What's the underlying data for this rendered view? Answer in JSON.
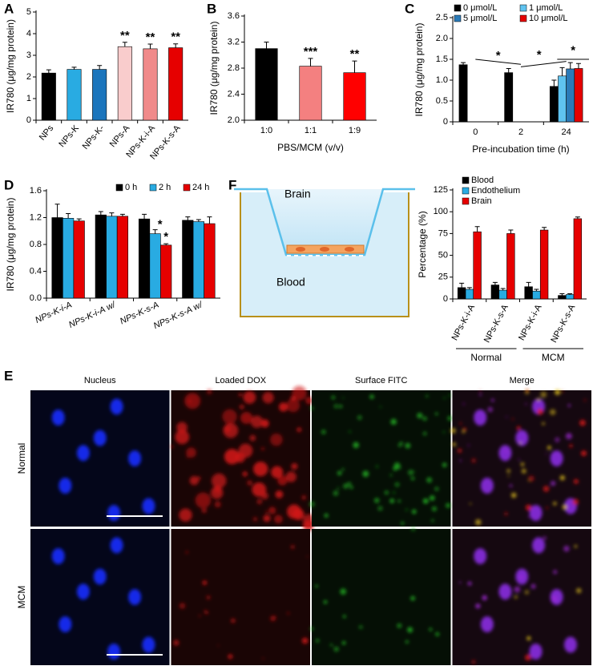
{
  "chart_data": [
    {
      "type": "bar",
      "label": "A",
      "ylabel": "IR780 (μg/mg protein)",
      "categories": [
        "NPs",
        "NPs-K",
        "NPs-K-",
        "NPs-A",
        "NPs-K-i-A",
        "NPs-K-s-A"
      ],
      "values": [
        2.18,
        2.35,
        2.35,
        3.4,
        3.3,
        3.35
      ],
      "errors": [
        0.15,
        0.1,
        0.18,
        0.2,
        0.22,
        0.18
      ],
      "colors": [
        "#000000",
        "#29abe2",
        "#1b75bc",
        "#f9cccc",
        "#f08a8a",
        "#e60000"
      ],
      "significance": [
        null,
        null,
        null,
        "**",
        "**",
        "**"
      ],
      "ylim": [
        0,
        5
      ],
      "yticks": [
        0,
        1,
        2,
        3,
        4,
        5
      ]
    },
    {
      "type": "bar",
      "label": "B",
      "ylabel": "IR780 (μg/mg protein)",
      "xlabel": "PBS/MCM (v/v)",
      "categories": [
        "1:0",
        "1:1",
        "1:9"
      ],
      "values": [
        3.1,
        2.83,
        2.73
      ],
      "errors": [
        0.1,
        0.12,
        0.18
      ],
      "colors": [
        "#000000",
        "#f48080",
        "#ff0000"
      ],
      "significance": [
        null,
        "***",
        "**"
      ],
      "ylim": [
        2.0,
        3.6
      ],
      "yticks": [
        {
          "value": 2.0,
          "label": "2.0"
        },
        2.4,
        2.8,
        3.2,
        3.6
      ]
    },
    {
      "type": "bar",
      "label": "C",
      "ylabel": "IR780 (μg/mg protein)",
      "xlabel": "Pre-incubation time (h)",
      "categories": [
        "0",
        "2",
        "24"
      ],
      "legend": "upper right",
      "series": [
        {
          "name": "0 μmol/L",
          "color": "#000000",
          "values": [
            1.37,
            1.18,
            0.85
          ],
          "errors": [
            0.05,
            0.1,
            0.15
          ]
        },
        {
          "name": "1 μmol/L",
          "color": "#5fc3f0",
          "values": [
            null,
            null,
            1.1
          ],
          "errors": [
            null,
            null,
            0.2
          ]
        },
        {
          "name": "5 μmol/L",
          "color": "#2a7ab8",
          "values": [
            null,
            null,
            1.27
          ],
          "errors": [
            null,
            null,
            0.15
          ]
        },
        {
          "name": "10 μmol/L",
          "color": "#e60000",
          "values": [
            null,
            null,
            1.28
          ],
          "errors": [
            null,
            null,
            0.12
          ]
        }
      ],
      "annotations": [
        "*",
        "*",
        "*"
      ],
      "ylim": [
        0,
        2.5
      ],
      "yticks": [
        0,
        0.5,
        {
          "value": 1.0,
          "label": "1.0"
        },
        1.5,
        {
          "value": 2.0,
          "label": "2.0"
        },
        2.5
      ]
    },
    {
      "type": "bar",
      "label": "D",
      "ylabel": "IR780 (μg/mg protein)",
      "categories": [
        "NPs-K-i-A",
        "NPs-K-i-A w/",
        "NPs-K-s-A",
        "NPs-K-s-A w/"
      ],
      "legend": "upper right",
      "series": [
        {
          "name": "0 h",
          "color": "#000000",
          "values": [
            1.2,
            1.24,
            1.18,
            1.16
          ],
          "errors": [
            0.2,
            0.05,
            0.07,
            0.05
          ]
        },
        {
          "name": "2 h",
          "color": "#29abe2",
          "values": [
            1.19,
            1.22,
            0.96,
            1.14
          ],
          "errors": [
            0.07,
            0.05,
            0.06,
            0.03
          ]
        },
        {
          "name": "24 h",
          "color": "#e60000",
          "values": [
            1.15,
            1.22,
            0.79,
            1.11
          ],
          "errors": [
            0.03,
            0.03,
            0.02,
            0.1
          ],
          "significance": [
            null,
            null,
            "*",
            null
          ]
        }
      ],
      "significance2": [
        null,
        null,
        "*",
        null
      ],
      "ylim": [
        0,
        1.6
      ],
      "yticks": [
        {
          "value": 0,
          "label": "0.0"
        },
        0.4,
        0.8,
        1.2,
        1.6
      ]
    },
    {
      "type": "bar",
      "ylabel": "Percentage (%)",
      "categories": [
        "NPs-K-i-A",
        "NPs-K-s-A",
        "NPs-K-i-A",
        "NPs-K-s-A"
      ],
      "groups": [
        "Normal",
        "MCM"
      ],
      "legend": "upper left",
      "series": [
        {
          "name": "Blood",
          "color": "#000000",
          "values": [
            13,
            16,
            14,
            4
          ],
          "errors": [
            5,
            3,
            5,
            2
          ]
        },
        {
          "name": "Endothelium",
          "color": "#29abe2",
          "values": [
            11,
            10,
            9,
            5
          ],
          "errors": [
            2,
            2,
            2,
            1
          ]
        },
        {
          "name": "Brain",
          "color": "#e60000",
          "values": [
            77,
            75,
            79,
            92
          ],
          "errors": [
            6,
            4,
            3,
            2
          ]
        }
      ],
      "ylim": [
        0,
        125
      ],
      "yticks": [
        0,
        25,
        50,
        75,
        100,
        125
      ]
    }
  ],
  "diagram": {
    "label": "F",
    "top": "Brain",
    "bottom": "Blood"
  },
  "images": {
    "label": "E",
    "columns": [
      "Nucleus",
      "Loaded DOX",
      "Surface FITC",
      "Merge"
    ],
    "rows": [
      "Normal",
      "MCM"
    ]
  }
}
